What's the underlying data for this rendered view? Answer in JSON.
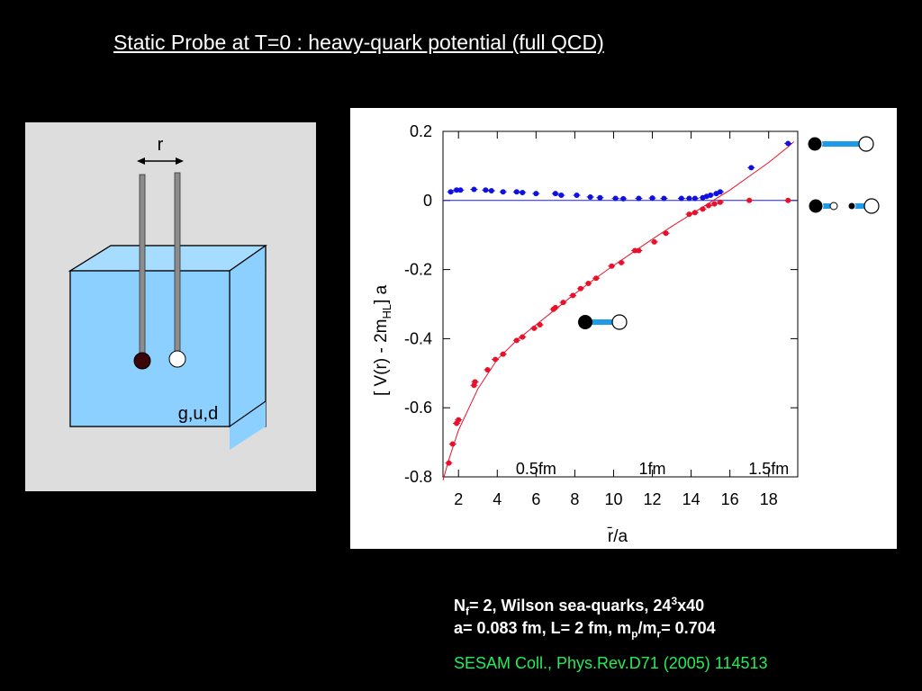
{
  "title": "Static Probe at T=0 : heavy-quark potential (full QCD)",
  "illustration": {
    "separation_label": "r",
    "medium_label": "g,u,d"
  },
  "chart_data": {
    "type": "scatter",
    "xlabel": "r̄/a",
    "ylabel_main": "[ V(r) - 2m",
    "ylabel_sub": "HL",
    "ylabel_tail": "] a",
    "xlim": [
      1.2,
      19.5
    ],
    "ylim": [
      -0.8,
      0.2
    ],
    "xticks": [
      2,
      4,
      6,
      8,
      10,
      12,
      14,
      16,
      18
    ],
    "yticks": [
      0.2,
      0,
      -0.2,
      -0.4,
      -0.6,
      -0.8
    ],
    "ytick_labels": [
      "0.2",
      "0",
      "-0.2",
      "-0.4",
      "-0.6",
      "-0.8"
    ],
    "fm_labels": [
      {
        "text": "0.5fm",
        "x": 6.0
      },
      {
        "text": "1fm",
        "x": 12.0
      },
      {
        "text": "1.5fm",
        "x": 18.0
      }
    ],
    "reference_line_y": 0,
    "red_series": [
      [
        1.5,
        -0.76
      ],
      [
        1.7,
        -0.705
      ],
      [
        1.9,
        -0.645
      ],
      [
        2.0,
        -0.635
      ],
      [
        2.8,
        -0.535
      ],
      [
        2.85,
        -0.525
      ],
      [
        3.5,
        -0.49
      ],
      [
        3.9,
        -0.46
      ],
      [
        4.3,
        -0.445
      ],
      [
        5.0,
        -0.405
      ],
      [
        5.3,
        -0.395
      ],
      [
        5.9,
        -0.37
      ],
      [
        6.2,
        -0.36
      ],
      [
        6.9,
        -0.315
      ],
      [
        7.0,
        -0.31
      ],
      [
        7.4,
        -0.295
      ],
      [
        7.9,
        -0.275
      ],
      [
        8.3,
        -0.255
      ],
      [
        8.7,
        -0.24
      ],
      [
        9.1,
        -0.225
      ],
      [
        9.9,
        -0.19
      ],
      [
        10.4,
        -0.18
      ],
      [
        11.1,
        -0.145
      ],
      [
        11.3,
        -0.145
      ],
      [
        12.1,
        -0.12
      ],
      [
        12.7,
        -0.095
      ],
      [
        13.9,
        -0.04
      ],
      [
        14.2,
        -0.035
      ],
      [
        14.6,
        -0.025
      ],
      [
        14.9,
        -0.015
      ],
      [
        15.2,
        -0.01
      ],
      [
        15.5,
        -0.005
      ],
      [
        17.0,
        0.0
      ],
      [
        19.0,
        0.0
      ]
    ],
    "red_fit": [
      [
        1.2,
        -0.81
      ],
      [
        1.5,
        -0.75
      ],
      [
        2,
        -0.665
      ],
      [
        3,
        -0.545
      ],
      [
        4,
        -0.46
      ],
      [
        5,
        -0.405
      ],
      [
        6,
        -0.36
      ],
      [
        7,
        -0.315
      ],
      [
        8,
        -0.27
      ],
      [
        9,
        -0.228
      ],
      [
        10,
        -0.188
      ],
      [
        11,
        -0.15
      ],
      [
        12,
        -0.112
      ],
      [
        13,
        -0.075
      ],
      [
        14,
        -0.04
      ],
      [
        15,
        -0.005
      ],
      [
        16,
        0.03
      ],
      [
        17,
        0.07
      ],
      [
        18,
        0.11
      ],
      [
        19,
        0.155
      ],
      [
        19.3,
        0.17
      ]
    ],
    "blue_series": [
      [
        1.6,
        0.025
      ],
      [
        1.9,
        0.03
      ],
      [
        2.1,
        0.03
      ],
      [
        2.8,
        0.032
      ],
      [
        3.4,
        0.03
      ],
      [
        3.7,
        0.028
      ],
      [
        4.3,
        0.025
      ],
      [
        5.0,
        0.025
      ],
      [
        5.3,
        0.023
      ],
      [
        6.0,
        0.02
      ],
      [
        7.0,
        0.02
      ],
      [
        7.3,
        0.015
      ],
      [
        8.1,
        0.015
      ],
      [
        8.8,
        0.01
      ],
      [
        9.3,
        0.008
      ],
      [
        10.1,
        0.006
      ],
      [
        10.5,
        0.005
      ],
      [
        11.3,
        0.006
      ],
      [
        12.0,
        0.007
      ],
      [
        12.6,
        0.006
      ],
      [
        13.5,
        0.006
      ],
      [
        13.9,
        0.006
      ],
      [
        14.2,
        0.006
      ],
      [
        14.6,
        0.008
      ],
      [
        14.8,
        0.012
      ],
      [
        15.0,
        0.015
      ],
      [
        15.3,
        0.02
      ],
      [
        15.5,
        0.025
      ],
      [
        17.1,
        0.095
      ],
      [
        19.0,
        0.165
      ]
    ]
  },
  "citation": {
    "line1_a": "N",
    "line1_sub": "f",
    "line1_b": "= 2, Wilson sea-quarks, 24",
    "line1_sup": "3",
    "line1_c": "x40",
    "line2_a": "a= 0.083 fm, L= 2 fm, m",
    "line2_sub1": "p",
    "line2_b": "/m",
    "line2_sub2": "r",
    "line2_c": "= 0.704",
    "reference": "SESAM Coll., Phys.Rev.D71 (2005) 114513"
  },
  "colors": {
    "red_series": "#e8102a",
    "blue_series": "#1010e0",
    "string_color": "#1e9be8",
    "medium_blue": "#8cd0ff"
  }
}
